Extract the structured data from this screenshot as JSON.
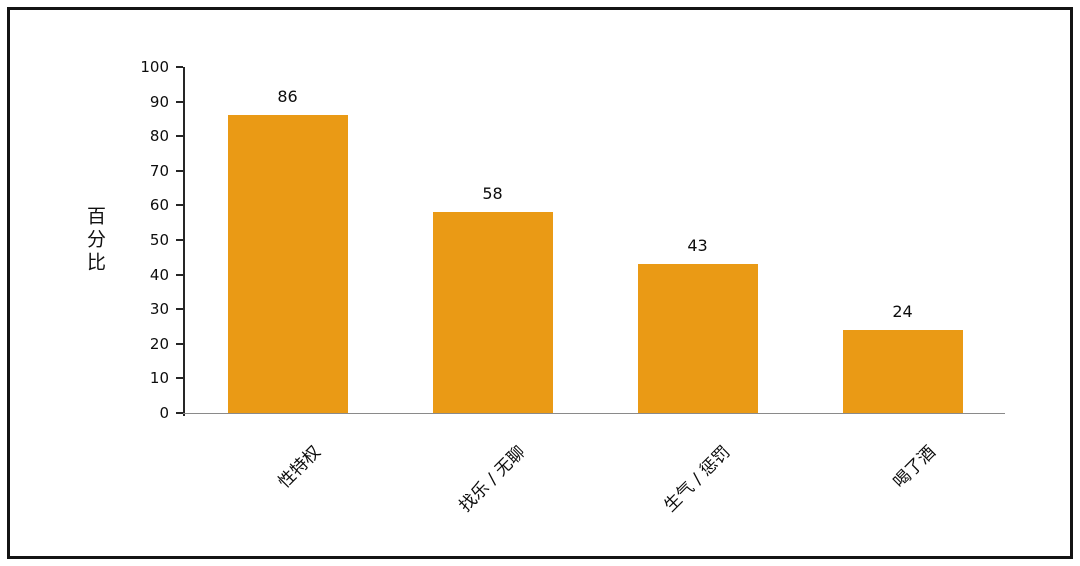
{
  "chart_data": {
    "type": "bar",
    "title": "",
    "xlabel": "",
    "ylabel": "百分比",
    "categories": [
      "性特权",
      "找乐 / 无聊",
      "生气 / 惩罚",
      "喝了酒"
    ],
    "values": [
      86,
      58,
      43,
      24
    ],
    "ylim": [
      0,
      100
    ],
    "ytick_step": 10,
    "grid": false,
    "legend": false,
    "colors": {
      "bar": "#EA9A15",
      "axis": "#262626",
      "baseline": "#8a8a8a",
      "frame": "#141414",
      "text": "#0d0d0d"
    }
  }
}
